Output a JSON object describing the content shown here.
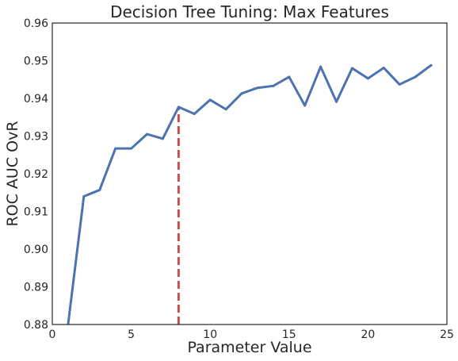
{
  "chart_data": {
    "type": "line",
    "title": "Decision Tree Tuning: Max Features",
    "xlabel": "Parameter Value",
    "ylabel": "ROC AUC OvR",
    "xlim": [
      0,
      25
    ],
    "ylim": [
      0.88,
      0.96
    ],
    "xticks": [
      0,
      5,
      10,
      15,
      20,
      25
    ],
    "xtick_labels": [
      "0",
      "5",
      "10",
      "15",
      "20",
      "25"
    ],
    "yticks": [
      0.88,
      0.89,
      0.9,
      0.91,
      0.92,
      0.93,
      0.94,
      0.95,
      0.96
    ],
    "ytick_labels": [
      "0.88",
      "0.89",
      "0.90",
      "0.91",
      "0.92",
      "0.93",
      "0.94",
      "0.95",
      "0.96"
    ],
    "grid": false,
    "series": [
      {
        "color": "#4c72b0",
        "x": [
          1,
          2,
          3,
          4,
          5,
          6,
          7,
          8,
          9,
          10,
          11,
          12,
          13,
          14,
          15,
          16,
          17,
          18,
          19,
          20,
          21,
          22,
          23,
          24
        ],
        "y": [
          0.88,
          0.914,
          0.9157,
          0.9267,
          0.9267,
          0.9305,
          0.9293,
          0.9377,
          0.9359,
          0.9396,
          0.9371,
          0.9413,
          0.9428,
          0.9433,
          0.9457,
          0.9381,
          0.9484,
          0.9391,
          0.948,
          0.9453,
          0.9481,
          0.9437,
          0.9457,
          0.9488
        ]
      }
    ],
    "reference_line": {
      "x": 8,
      "y_from": 0.88,
      "y_to": 0.9377,
      "style": "dashed",
      "color": "#c44e52"
    }
  }
}
